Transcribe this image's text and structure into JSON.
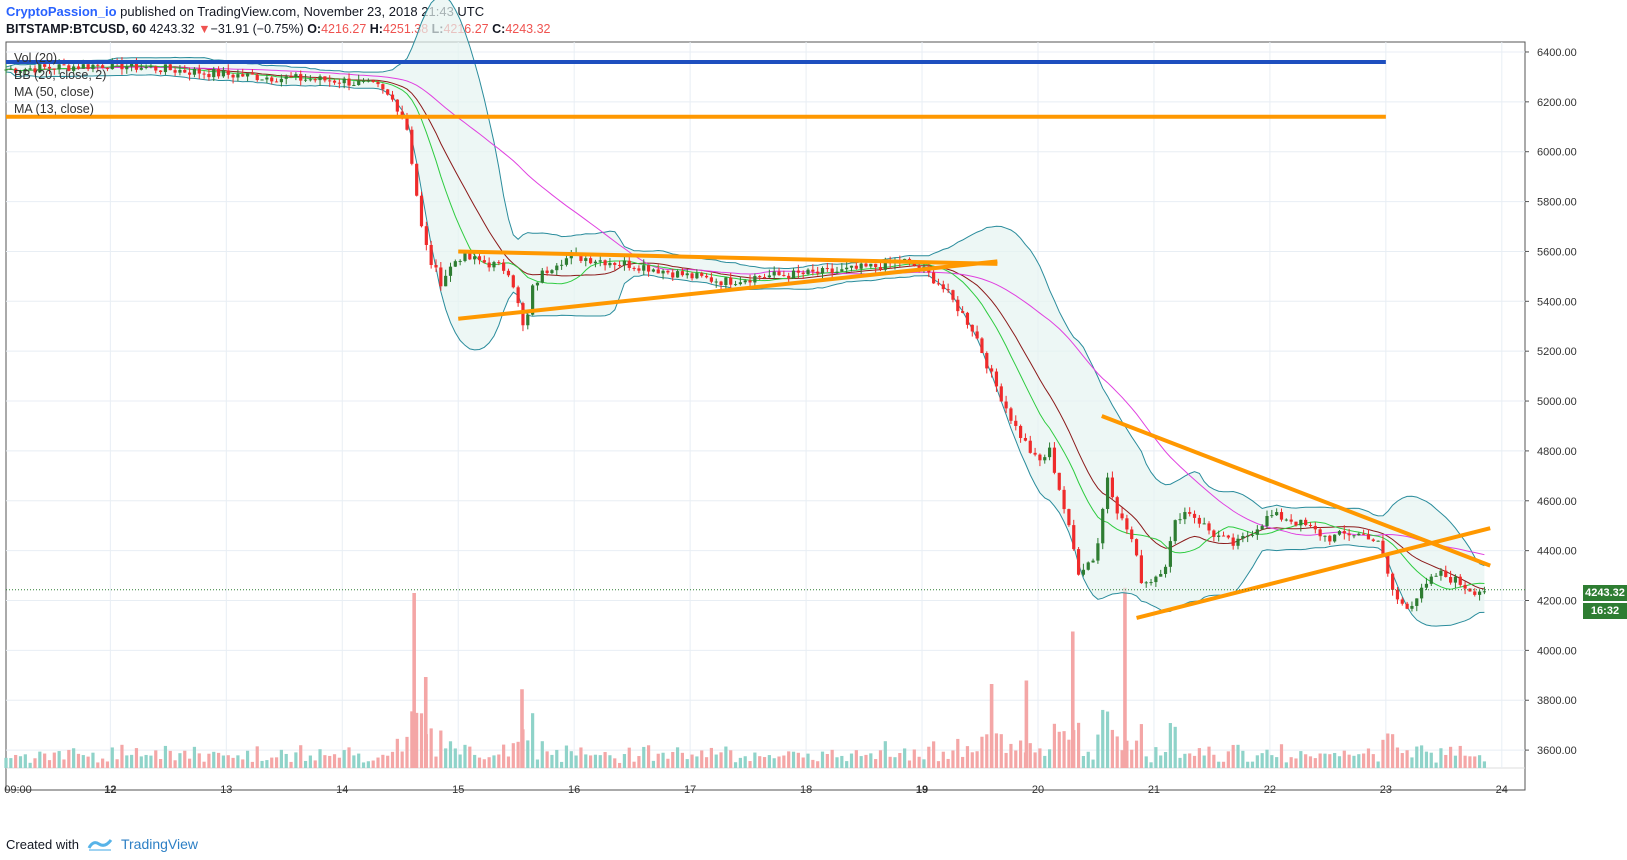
{
  "header": {
    "author": "CryptoPassion_io",
    "published_text": "published on TradingView.com, November 23, 2018 21:43 UTC"
  },
  "symbol_line": {
    "symbol": "BITSTAMP:BTCUSD, 60",
    "last": "4243.32",
    "change_arrow": "▼",
    "change": "−31.91 (−0.75%)",
    "o_label": "O:",
    "o": "4216.27",
    "h_label": "H:",
    "h": "4251.38",
    "l_label": "L:",
    "l": "4216.27",
    "c_label": "C:",
    "c": "4243.32"
  },
  "indicators": [
    "Vol (20)",
    "BB (20, close, 2)",
    "MA (50, close)",
    "MA (13, close)"
  ],
  "price_tags": {
    "last": "4243.32",
    "countdown": "16:32"
  },
  "footer": {
    "created_with": "Created with",
    "brand": "TradingView"
  },
  "colors": {
    "up": "#26a69a",
    "candle_up": "#2e7d32",
    "down": "#ef2b2b",
    "ma13": "#2ecc40",
    "ma50": "#e040e0",
    "ma20": "#8b1a1a",
    "bb": "#2a8c9c",
    "resistance_blue": "#1e4fbf",
    "trend_orange": "#ff9800"
  },
  "chart_data": {
    "type": "candlestick",
    "x_tick_labels": [
      "09:00",
      "12",
      "13",
      "14",
      "15",
      "16",
      "17",
      "18",
      "19",
      "20",
      "21",
      "22",
      "23",
      "24"
    ],
    "y_tick_labels": [
      "6400.00",
      "6200.00",
      "6000.00",
      "5800.00",
      "5600.00",
      "5400.00",
      "5200.00",
      "5000.00",
      "4800.00",
      "4600.00",
      "4400.00",
      "4200.00",
      "4000.00",
      "3800.00",
      "3600.00"
    ],
    "ylim": [
      3440,
      6440
    ],
    "grid": true,
    "horizontal_levels": [
      {
        "price": 6360,
        "color": "blue"
      },
      {
        "price": 6140,
        "color": "orange"
      }
    ],
    "close_path": [
      [
        11.1,
        6330
      ],
      [
        11.6,
        6340
      ],
      [
        12.0,
        6350
      ],
      [
        12.5,
        6330
      ],
      [
        13.0,
        6310
      ],
      [
        13.5,
        6295
      ],
      [
        14.0,
        6285
      ],
      [
        14.3,
        6260
      ],
      [
        14.45,
        6200
      ],
      [
        14.55,
        6120
      ],
      [
        14.62,
        5900
      ],
      [
        14.68,
        5700
      ],
      [
        14.75,
        5570
      ],
      [
        14.85,
        5480
      ],
      [
        15.0,
        5580
      ],
      [
        15.2,
        5560
      ],
      [
        15.35,
        5540
      ],
      [
        15.45,
        5520
      ],
      [
        15.5,
        5420
      ],
      [
        15.58,
        5250
      ],
      [
        15.62,
        5430
      ],
      [
        15.7,
        5500
      ],
      [
        15.85,
        5560
      ],
      [
        16.0,
        5580
      ],
      [
        16.3,
        5560
      ],
      [
        16.6,
        5540
      ],
      [
        17.0,
        5500
      ],
      [
        17.3,
        5480
      ],
      [
        17.6,
        5500
      ],
      [
        18.0,
        5510
      ],
      [
        18.3,
        5520
      ],
      [
        18.6,
        5540
      ],
      [
        18.85,
        5560
      ],
      [
        19.0,
        5530
      ],
      [
        19.15,
        5470
      ],
      [
        19.3,
        5380
      ],
      [
        19.45,
        5280
      ],
      [
        19.6,
        5100
      ],
      [
        19.8,
        4900
      ],
      [
        20.0,
        4750
      ],
      [
        20.1,
        4800
      ],
      [
        20.2,
        4620
      ],
      [
        20.35,
        4320
      ],
      [
        20.5,
        4380
      ],
      [
        20.6,
        4700
      ],
      [
        20.7,
        4540
      ],
      [
        20.8,
        4460
      ],
      [
        20.9,
        4270
      ],
      [
        21.0,
        4290
      ],
      [
        21.1,
        4350
      ],
      [
        21.2,
        4540
      ],
      [
        21.3,
        4560
      ],
      [
        21.5,
        4470
      ],
      [
        21.7,
        4420
      ],
      [
        21.85,
        4480
      ],
      [
        22.0,
        4540
      ],
      [
        22.15,
        4530
      ],
      [
        22.3,
        4500
      ],
      [
        22.5,
        4450
      ],
      [
        22.7,
        4470
      ],
      [
        22.85,
        4460
      ],
      [
        22.95,
        4420
      ],
      [
        23.05,
        4250
      ],
      [
        23.1,
        4200
      ],
      [
        23.2,
        4180
      ],
      [
        23.3,
        4230
      ],
      [
        23.45,
        4310
      ],
      [
        23.6,
        4280
      ],
      [
        23.75,
        4240
      ],
      [
        23.85,
        4243
      ]
    ],
    "trendlines": [
      {
        "from": [
          15.0,
          5600
        ],
        "to": [
          19.65,
          5550
        ]
      },
      {
        "from": [
          15.0,
          5330
        ],
        "to": [
          19.65,
          5560
        ]
      },
      {
        "from": [
          20.55,
          4940
        ],
        "to": [
          23.9,
          4340
        ]
      },
      {
        "from": [
          20.85,
          4130
        ],
        "to": [
          23.9,
          4490
        ]
      }
    ],
    "volume_spikes": [
      {
        "x": 14.62,
        "v": 1.0
      },
      {
        "x": 14.72,
        "v": 0.52
      },
      {
        "x": 15.55,
        "v": 0.45
      },
      {
        "x": 20.3,
        "v": 0.78
      },
      {
        "x": 20.75,
        "v": 1.03
      },
      {
        "x": 19.6,
        "v": 0.48
      },
      {
        "x": 19.9,
        "v": 0.5
      }
    ]
  }
}
